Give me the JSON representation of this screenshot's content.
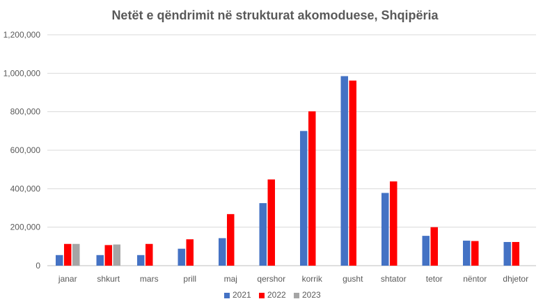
{
  "chart_data": {
    "type": "bar",
    "title": "Netët e qëndrimit në strukturat akomoduese, Shqipëria",
    "xlabel": "",
    "ylabel": "",
    "categories": [
      "janar",
      "shkurt",
      "mars",
      "prill",
      "maj",
      "qershor",
      "korrik",
      "gusht",
      "shtator",
      "tetor",
      "nëntor",
      "dhjetor"
    ],
    "ylim": [
      0,
      1200000
    ],
    "yticks": [
      0,
      200000,
      400000,
      600000,
      800000,
      1000000,
      1200000
    ],
    "ytick_labels": [
      "0",
      "200,000",
      "400,000",
      "600,000",
      "800,000",
      "1,000,000",
      "1,200,000"
    ],
    "grid": true,
    "legend_position": "bottom",
    "series": [
      {
        "name": "2021",
        "color": "#4472C4",
        "values": [
          55000,
          55000,
          55000,
          88000,
          143000,
          325000,
          700000,
          985000,
          378000,
          155000,
          130000,
          123000
        ]
      },
      {
        "name": "2022",
        "color": "#FF0000",
        "values": [
          113000,
          107000,
          113000,
          137000,
          268000,
          448000,
          802000,
          962000,
          438000,
          200000,
          128000,
          123000
        ]
      },
      {
        "name": "2023",
        "color": "#A5A5A5",
        "values": [
          113000,
          110000,
          null,
          null,
          null,
          null,
          null,
          null,
          null,
          null,
          null,
          null
        ]
      }
    ]
  }
}
